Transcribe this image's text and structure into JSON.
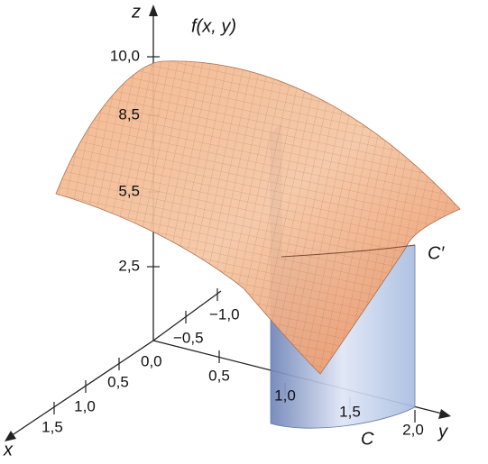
{
  "axes": {
    "z": {
      "label": "z",
      "ticks": [
        "2,5",
        "5,5",
        "8,5",
        "10,0"
      ]
    },
    "y": {
      "label": "y",
      "ticks": [
        "−1,0",
        "−0,5",
        "0,5",
        "1,0",
        "1,5",
        "2,0"
      ]
    },
    "x": {
      "label": "x",
      "ticks": [
        "0,5",
        "1,0",
        "1,5"
      ]
    },
    "origin": "0,0"
  },
  "labels": {
    "surface": "f(x, y)",
    "curve": "C",
    "projected_curve": "C′"
  }
}
